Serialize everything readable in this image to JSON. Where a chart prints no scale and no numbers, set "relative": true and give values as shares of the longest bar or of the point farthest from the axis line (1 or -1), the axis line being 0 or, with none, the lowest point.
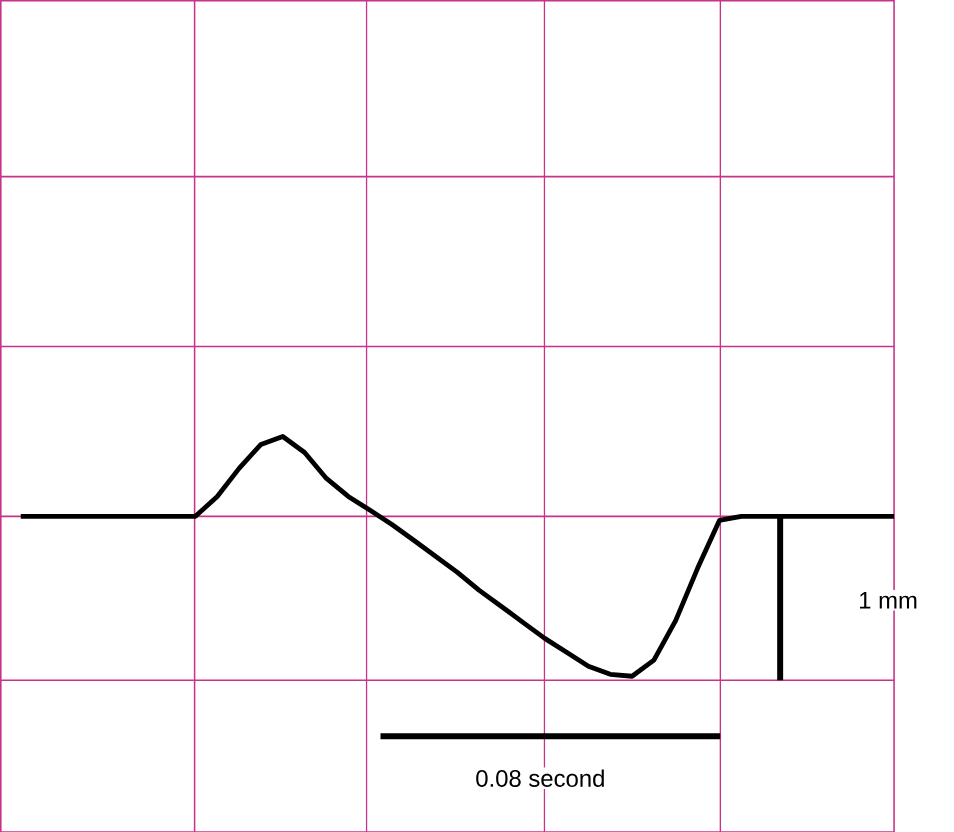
{
  "chart_data": {
    "type": "line",
    "relative": true,
    "grid": true,
    "categories": [
      null,
      null,
      null,
      null,
      null,
      null,
      null,
      null,
      null,
      null,
      null,
      null,
      null,
      null,
      null,
      null,
      null,
      null,
      null,
      null,
      null,
      null,
      null,
      null,
      null,
      null,
      null,
      null,
      null,
      null,
      null,
      null,
      null,
      null,
      null,
      null,
      null,
      null,
      null,
      null,
      null
    ],
    "series": [
      {
        "color": "#000000",
        "values": [
          0.667,
          0.667,
          0.667,
          0.667,
          0.667,
          0.667,
          0.667,
          0.667,
          0.667,
          0.75,
          0.867,
          0.967,
          1,
          0.933,
          0.825,
          0.75,
          0.692,
          0.633,
          0.567,
          0.5,
          0.433,
          0.358,
          0.292,
          0.225,
          0.158,
          0.1,
          0.042,
          0.008,
          0,
          0.067,
          0.233,
          0.45,
          0.65,
          0.667,
          0.667,
          0.667,
          0.667,
          0.667,
          0.667,
          0.667,
          0.667
        ]
      }
    ],
    "annotations": [
      "1 mm",
      "0.08 second"
    ]
  }
}
